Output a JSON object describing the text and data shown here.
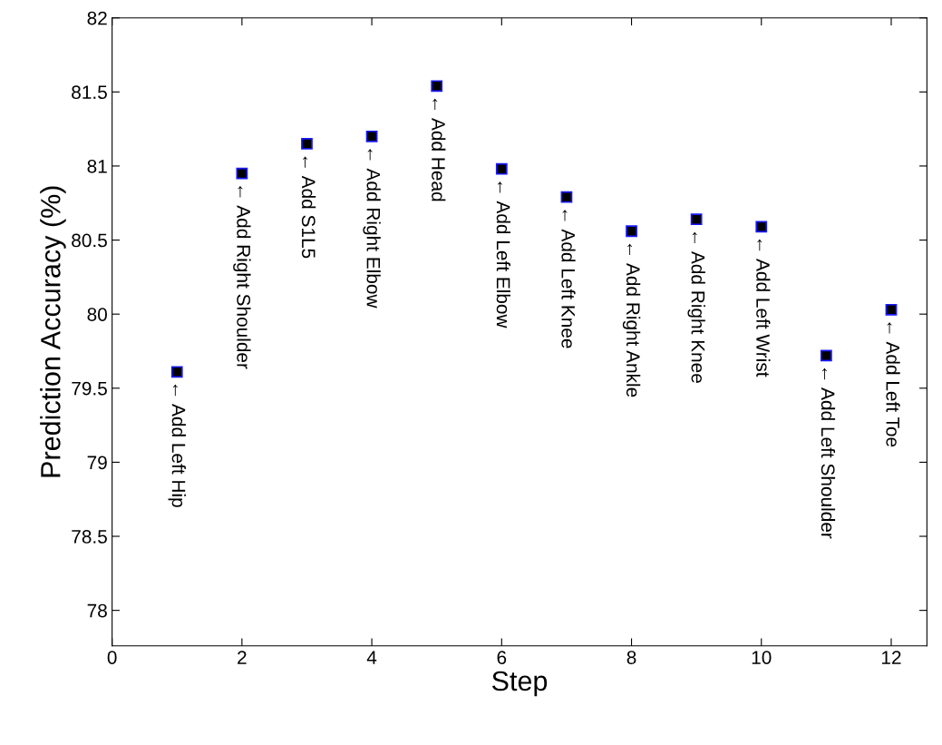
{
  "chart_data": {
    "type": "scatter",
    "xlabel": "Step",
    "ylabel": "Prediction Accuracy (%)",
    "x": [
      1,
      2,
      3,
      4,
      5,
      6,
      7,
      8,
      9,
      10,
      11,
      12
    ],
    "series": [
      {
        "color": "#000000",
        "values": [
          79.61,
          80.95,
          81.15,
          81.2,
          81.54,
          80.98,
          80.79,
          80.56,
          80.64,
          80.59,
          79.72,
          80.03
        ]
      }
    ],
    "marker": "square",
    "xlim": [
      0,
      12.55
    ],
    "xticks": [
      0,
      2,
      4,
      6,
      8,
      10,
      12
    ],
    "ylim": [
      77.76,
      82
    ],
    "yticks": [
      78,
      78.5,
      79,
      79.5,
      80,
      80.5,
      81,
      81.5,
      82
    ],
    "grid": false,
    "annotations": [
      {
        "text": "← Add Left Hip",
        "x": 1,
        "y": 79.61
      },
      {
        "text": "← Add Right Shoulder",
        "x": 2,
        "y": 80.95
      },
      {
        "text": "← Add S1L5",
        "x": 3,
        "y": 81.15
      },
      {
        "text": "← Add Right Elbow",
        "x": 4,
        "y": 81.2
      },
      {
        "text": "← Add Head",
        "x": 5,
        "y": 81.54
      },
      {
        "text": "← Add Left Elbow",
        "x": 6,
        "y": 80.98
      },
      {
        "text": "← Add Left Knee",
        "x": 7,
        "y": 80.79
      },
      {
        "text": "← Add Right Ankle",
        "x": 8,
        "y": 80.56
      },
      {
        "text": "← Add Right Knee",
        "x": 9,
        "y": 80.64
      },
      {
        "text": "← Add Left Wrist",
        "x": 10,
        "y": 80.59
      },
      {
        "text": "← Add Left Shoulder",
        "x": 11,
        "y": 79.72
      },
      {
        "text": "← Add Left Toe",
        "x": 12,
        "y": 80.03
      }
    ]
  }
}
